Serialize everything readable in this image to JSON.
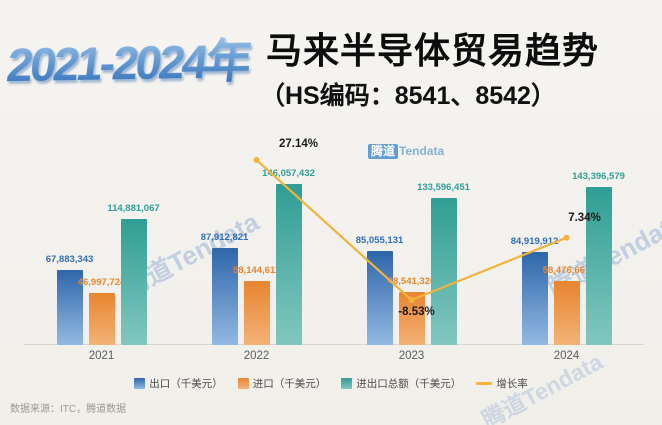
{
  "title": {
    "years": "2021-2024年",
    "main": "马来半导体贸易趋势",
    "sub": "（HS编码：8541、8542）"
  },
  "watermark": {
    "zh": "腾道",
    "en": "Tendata",
    "full": "腾道Tendata"
  },
  "footer": {
    "source": "数据来源：ITC，腾道数据"
  },
  "chart_data": {
    "type": "bar",
    "title": "马来半导体贸易趋势（HS编码：8541、8542）",
    "categories": [
      "2021",
      "2022",
      "2023",
      "2024"
    ],
    "series": [
      {
        "name": "出口（千美元）",
        "color": "#2f6db5",
        "gradient": [
          "#2e66ab",
          "#93b9e2"
        ],
        "values": [
          67883343,
          87912821,
          85055131,
          84919912
        ],
        "labels": [
          "67,883,343",
          "87,912,821",
          "85,055,131",
          "84,919,912"
        ]
      },
      {
        "name": "进口（千美元）",
        "color": "#e8862f",
        "gradient": [
          "#e8852f",
          "#f3b277"
        ],
        "values": [
          46997724,
          58144611,
          48541320,
          58476667
        ],
        "labels": [
          "46,997,724",
          "58,144,611",
          "48,541,320",
          "58,476,667"
        ]
      },
      {
        "name": "进出口总额（千美元）",
        "color": "#2f9e94",
        "gradient": [
          "#2f9e94",
          "#82c7bf"
        ],
        "values": [
          114881067,
          146057432,
          133596451,
          143396579
        ],
        "labels": [
          "114,881,067",
          "146,057,432",
          "133,596,451",
          "143,396,579"
        ]
      }
    ],
    "line": {
      "name": "增长率",
      "color": "#f0b33c",
      "values": [
        null,
        27.14,
        -8.53,
        7.34
      ],
      "labels": [
        "",
        "27.14%",
        "-8.53%",
        "7.34%"
      ]
    },
    "ylim": [
      0,
      150000000
    ],
    "grid": false,
    "legend_position": "bottom"
  }
}
